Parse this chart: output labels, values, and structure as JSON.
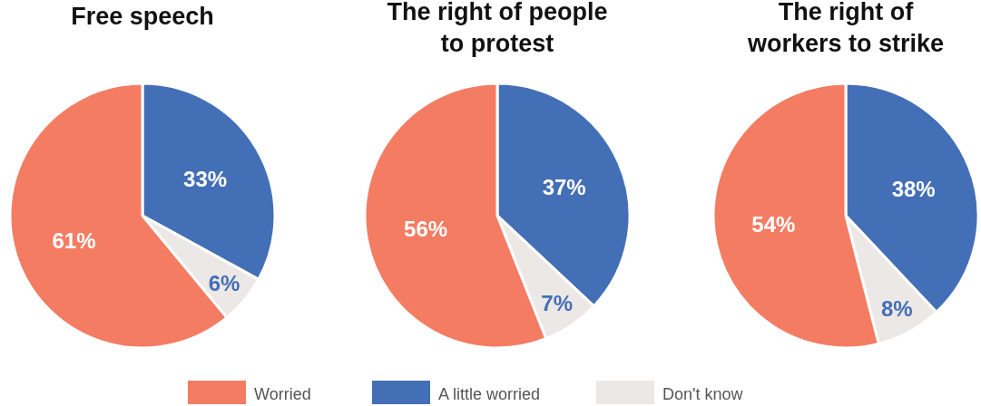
{
  "chart_data": [
    {
      "type": "pie",
      "title": "Free speech",
      "categories": [
        null,
        null,
        null
      ],
      "values": [
        33,
        6,
        61
      ],
      "colors": [
        "#436fb6",
        "#ece8e6",
        "#f47c62"
      ],
      "value_labels": [
        "33%",
        "6%",
        "61%"
      ]
    },
    {
      "type": "pie",
      "title": "The right of people to protest",
      "categories": [
        "A little worried",
        "Don't know",
        "Worried"
      ],
      "values": [
        37,
        7,
        56
      ],
      "colors": [
        "#436fb6",
        "#ece8e6",
        "#f47c62"
      ],
      "value_labels": [
        "37%",
        "7%",
        "56%"
      ],
      "legend": "bottom"
    },
    {
      "type": "pie",
      "title": "The right of workers to strike",
      "categories": [
        null,
        null,
        null
      ],
      "values": [
        38,
        8,
        54
      ],
      "colors": [
        "#436fb6",
        "#ece8e6",
        "#f47c62"
      ],
      "value_labels": [
        "38%",
        "8%",
        "54%"
      ]
    }
  ]
}
